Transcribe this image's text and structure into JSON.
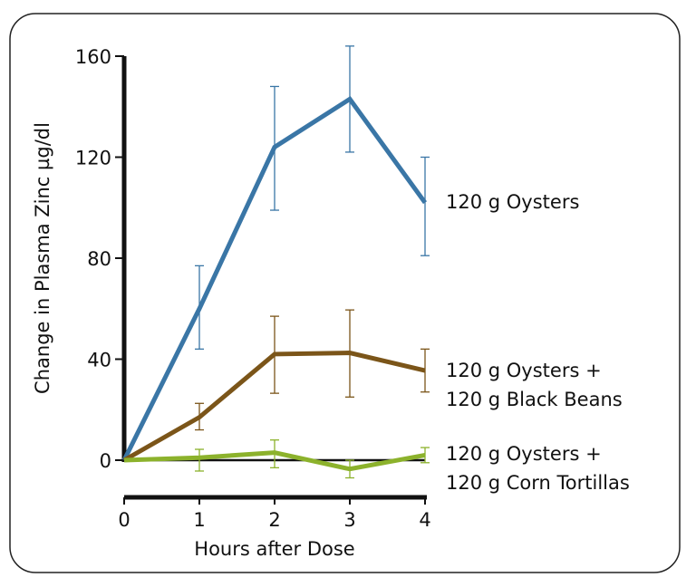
{
  "chart_data": {
    "type": "line",
    "title": "",
    "xlabel": "Hours after Dose",
    "ylabel": "Change in Plasma Zinc µg/dl",
    "xlim": [
      0,
      4
    ],
    "ylim": [
      0,
      160
    ],
    "x_ticks": [
      "0",
      "1",
      "2",
      "3",
      "4"
    ],
    "y_ticks": [
      "0",
      "40",
      "80",
      "120",
      "160"
    ],
    "grid": false,
    "legend": "right, labels at line ends",
    "x": [
      0,
      1,
      2,
      3,
      4
    ],
    "series": [
      {
        "name": "120 g Oysters",
        "label_lines": [
          "120 g Oysters"
        ],
        "color": "#3a76a6",
        "values": [
          0,
          60,
          124,
          143,
          102
        ],
        "err_low": [
          null,
          44,
          99,
          122,
          81
        ],
        "err_high": [
          null,
          77,
          148,
          164,
          120
        ]
      },
      {
        "name": "120 g Oysters + 120 g Black Beans",
        "label_lines": [
          "120 g Oysters +",
          "120 g Black Beans"
        ],
        "color": "#7b5519",
        "values": [
          0,
          17,
          42,
          42.5,
          35.5
        ],
        "err_low": [
          null,
          12,
          26.5,
          25,
          27
        ],
        "err_high": [
          null,
          22.5,
          57,
          59.5,
          44
        ]
      },
      {
        "name": "120 g Oysters + 120 g Corn Tortillas",
        "label_lines": [
          "120 g Oysters +",
          "120 g Corn Tortillas"
        ],
        "color": "#8cb22c",
        "values": [
          0,
          1,
          3,
          -3.5,
          2
        ],
        "err_low": [
          null,
          -4.3,
          -3,
          -7,
          -1
        ],
        "err_high": [
          null,
          4.3,
          8,
          0,
          5
        ]
      }
    ]
  }
}
